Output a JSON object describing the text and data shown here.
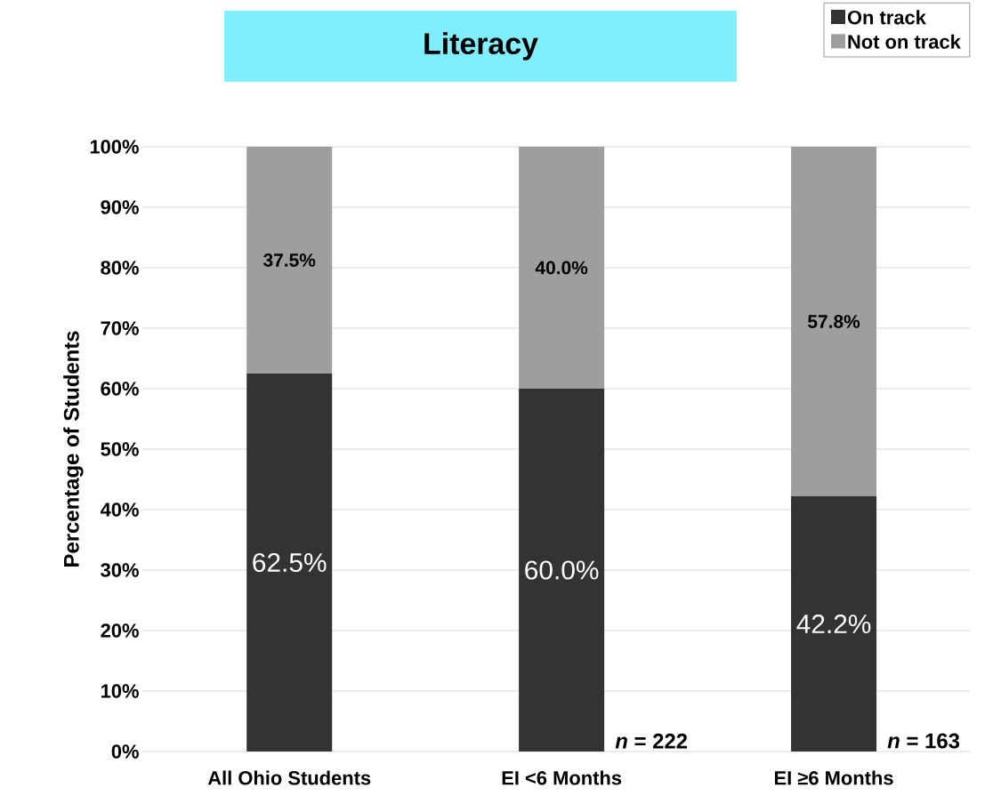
{
  "chart_data": {
    "type": "bar",
    "stacked": true,
    "title": "Literacy",
    "ylabel": "Percentage of Students",
    "categories": [
      "All Ohio Students",
      "EI <6 Months",
      "EI ≥6 Months"
    ],
    "series": [
      {
        "name": "On track",
        "color": "#333333",
        "values": [
          62.5,
          60.0,
          42.2
        ],
        "value_labels": [
          "62.5%",
          "60.0%",
          "42.2%"
        ]
      },
      {
        "name": "Not on track",
        "color": "#9e9e9e",
        "values": [
          37.5,
          40.0,
          57.8
        ],
        "value_labels": [
          "37.5%",
          "40.0%",
          "57.8%"
        ]
      }
    ],
    "ylim": [
      0,
      100
    ],
    "yticks": [
      {
        "value": 0,
        "label": "0%"
      },
      {
        "value": 10,
        "label": "10%"
      },
      {
        "value": 20,
        "label": "20%"
      },
      {
        "value": 30,
        "label": "30%"
      },
      {
        "value": 40,
        "label": "40%"
      },
      {
        "value": 50,
        "label": "50%"
      },
      {
        "value": 60,
        "label": "60%"
      },
      {
        "value": 70,
        "label": "70%"
      },
      {
        "value": 80,
        "label": "80%"
      },
      {
        "value": 90,
        "label": "90%"
      },
      {
        "value": 100,
        "label": "100%"
      }
    ],
    "grid": "y",
    "legend": "top right",
    "annotations": [
      {
        "text": "*n* = 222",
        "x": "EI <6 Months",
        "y": 0
      },
      {
        "text": "*n* = 163",
        "x": "EI ≥6 Months",
        "y": 0
      }
    ]
  }
}
